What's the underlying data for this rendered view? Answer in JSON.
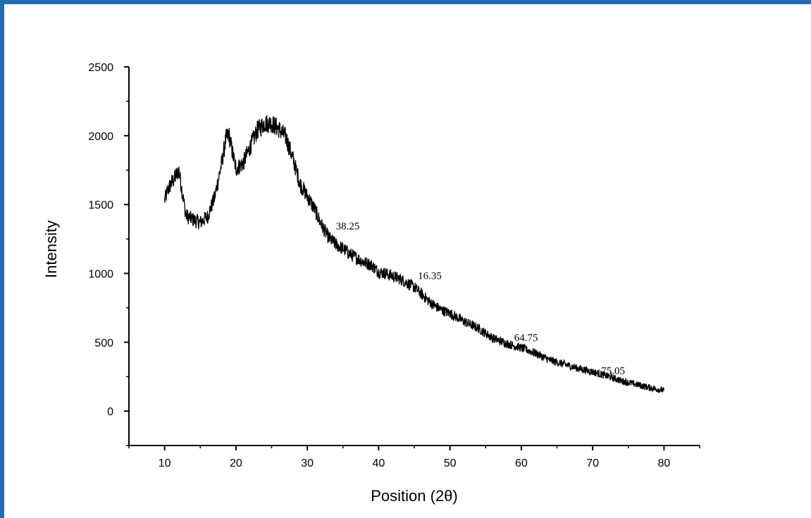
{
  "chart_data": {
    "type": "line",
    "title": "",
    "xlabel": "Position (2θ)",
    "ylabel": "Intensity",
    "xlim": [
      5,
      85
    ],
    "ylim": [
      -250,
      2500
    ],
    "xticks": [
      10,
      20,
      30,
      40,
      50,
      60,
      70,
      80
    ],
    "yticks": [
      0,
      500,
      1000,
      1500,
      2000,
      2500
    ],
    "grid": false,
    "legend": "none",
    "series": [
      {
        "color": "#000000",
        "noise_amplitude": 60,
        "x": [
          10,
          10.5,
          11,
          11.5,
          12,
          12.5,
          13,
          14,
          15,
          16,
          17,
          18,
          18.6,
          19,
          19.5,
          20,
          21,
          22,
          23,
          24,
          25,
          26,
          27,
          28,
          29,
          30,
          31,
          32,
          33,
          34,
          35,
          36,
          37,
          38,
          39,
          40,
          41,
          42,
          43,
          44,
          45,
          46,
          47,
          48,
          49,
          50,
          52,
          54,
          56,
          58,
          60,
          62,
          64,
          66,
          68,
          70,
          72,
          74,
          76,
          78,
          80
        ],
        "y": [
          1530,
          1610,
          1660,
          1700,
          1750,
          1580,
          1420,
          1390,
          1370,
          1410,
          1550,
          1800,
          1980,
          2010,
          1880,
          1760,
          1800,
          1920,
          2040,
          2090,
          2090,
          2050,
          1990,
          1830,
          1650,
          1560,
          1470,
          1350,
          1260,
          1210,
          1180,
          1140,
          1110,
          1080,
          1060,
          1010,
          1000,
          980,
          960,
          930,
          900,
          850,
          800,
          760,
          730,
          710,
          650,
          600,
          530,
          490,
          460,
          420,
          370,
          340,
          310,
          285,
          255,
          220,
          195,
          170,
          150
        ]
      }
    ],
    "annotations": [
      {
        "text": "38.25",
        "x": 34.0,
        "y": 1320
      },
      {
        "text": "16.35",
        "x": 45.5,
        "y": 960
      },
      {
        "text": "64.75",
        "x": 59.0,
        "y": 510
      },
      {
        "text": "75.05",
        "x": 71.2,
        "y": 270
      }
    ]
  }
}
